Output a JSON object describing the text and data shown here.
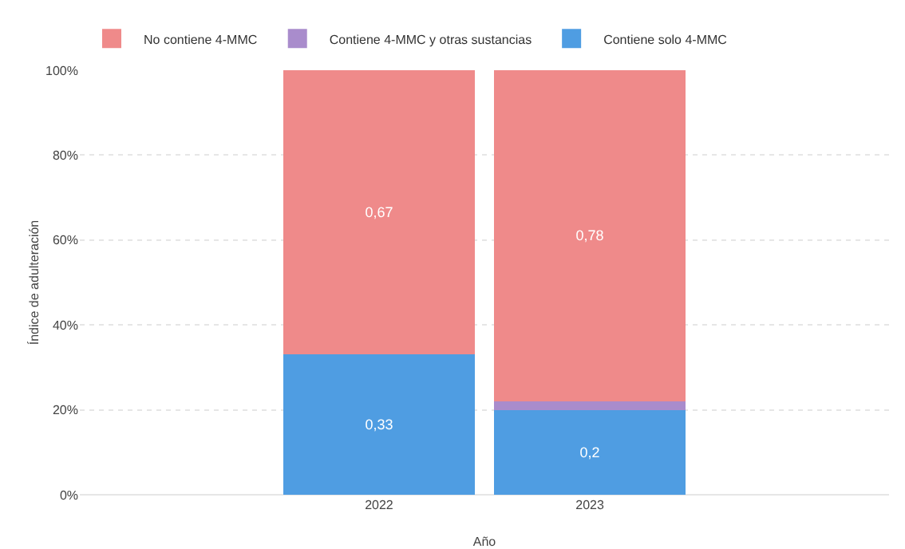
{
  "chart_data": {
    "type": "bar",
    "stacked": true,
    "xlabel": "Año",
    "ylabel": "Índice de adulteración",
    "categories": [
      "2022",
      "2023"
    ],
    "series": [
      {
        "name": "Contiene solo 4-MMC",
        "color": "#4f9de2",
        "values": [
          0.33,
          0.2
        ],
        "value_labels": [
          "0,33",
          "0,2"
        ]
      },
      {
        "name": "Contiene 4-MMC y otras sustancias",
        "color": "#a98ccc",
        "values": [
          0,
          0.02
        ],
        "value_labels": [
          null,
          null
        ]
      },
      {
        "name": "No contiene 4-MMC",
        "color": "#ef8a8a",
        "values": [
          0.67,
          0.78
        ],
        "value_labels": [
          "0,67",
          "0,78"
        ]
      }
    ],
    "ylim": [
      0,
      1
    ],
    "yticks": [
      {
        "value": 0,
        "label": "0%"
      },
      {
        "value": 0.2,
        "label": "20%"
      },
      {
        "value": 0.4,
        "label": "40%"
      },
      {
        "value": 0.6,
        "label": "60%"
      },
      {
        "value": 0.8,
        "label": "80%"
      },
      {
        "value": 1,
        "label": "100%"
      }
    ],
    "grid": "y",
    "legend": "top left"
  }
}
